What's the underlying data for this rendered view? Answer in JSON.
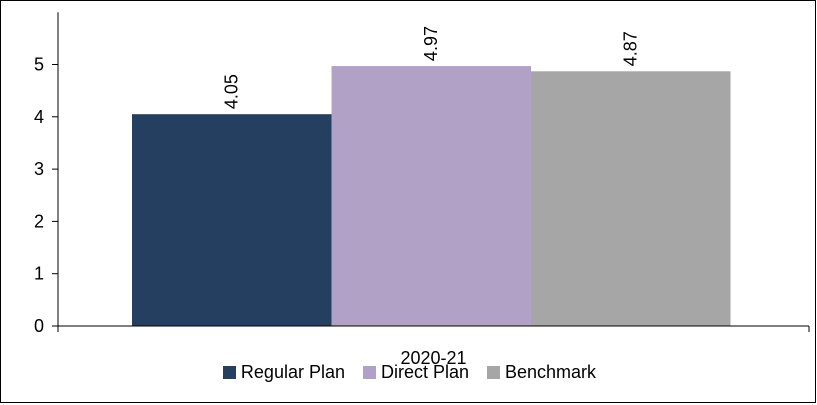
{
  "chart_data": {
    "type": "bar",
    "categories": [
      "2020-21"
    ],
    "series": [
      {
        "name": "Regular Plan",
        "values": [
          4.05
        ],
        "color": "#243f60"
      },
      {
        "name": "Direct Plan",
        "values": [
          4.97
        ],
        "color": "#b2a1c7"
      },
      {
        "name": "Benchmark",
        "values": [
          4.87
        ],
        "color": "#a6a6a6"
      }
    ],
    "data_labels": [
      "4.05",
      "4.97",
      "4.87"
    ],
    "yticks": [
      "0",
      "1",
      "2",
      "3",
      "4",
      "5"
    ],
    "ylim": [
      0,
      6
    ],
    "grid": false,
    "legend_position": "bottom"
  }
}
